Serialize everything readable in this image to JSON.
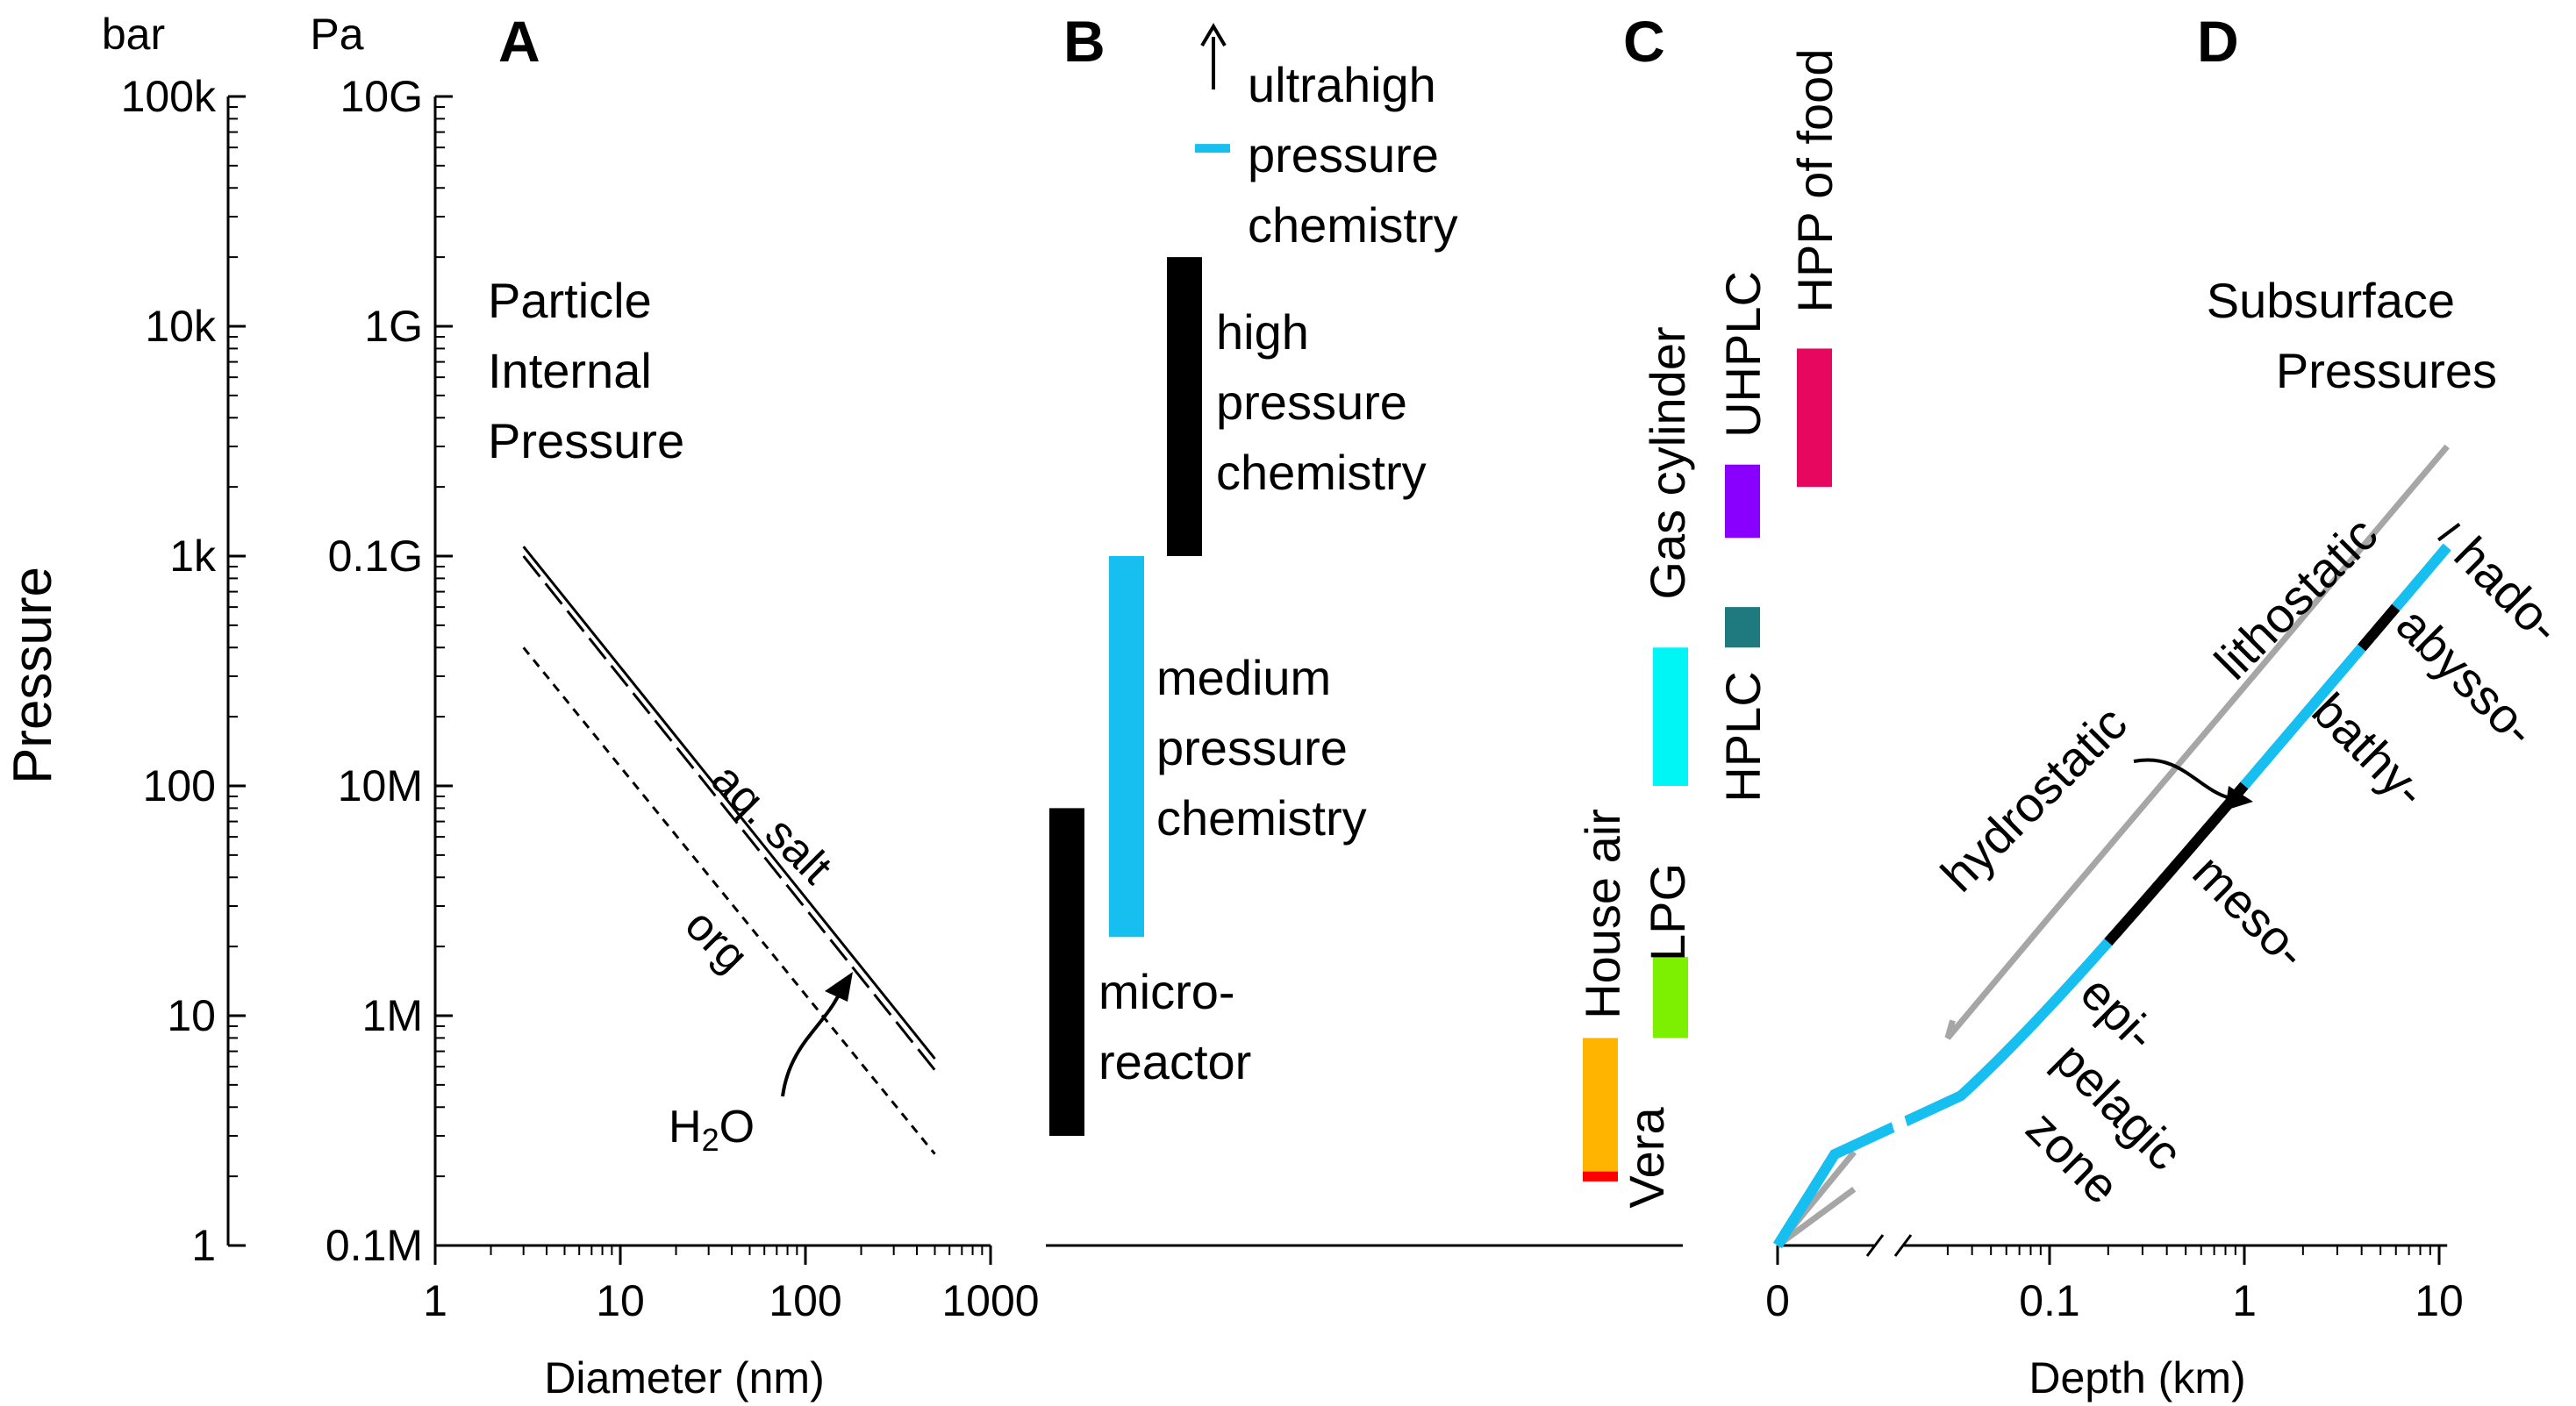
{
  "axis": {
    "ylabel": "Pressure",
    "bar_unit": "bar",
    "pa_unit": "Pa",
    "bar_ticks": [
      "100k",
      "10k",
      "1k",
      "100",
      "10",
      "1"
    ],
    "pa_ticks": [
      "10G",
      "1G",
      "0.1G",
      "10M",
      "1M",
      "0.1M"
    ]
  },
  "panels": {
    "A": {
      "letter": "A",
      "title_lines": [
        "Particle",
        "Internal",
        "Pressure"
      ]
    },
    "B": {
      "letter": "B"
    },
    "C": {
      "letter": "C"
    },
    "D": {
      "letter": "D",
      "title_lines": [
        "Subsurface",
        "Pressures"
      ]
    }
  },
  "colors": {
    "medium": "#16bff0",
    "hplc": "#1f7a80",
    "uhplc": "#8a00ff",
    "hpp": "#e8075e",
    "gas": "#00f5f5",
    "lpg": "#7cf000",
    "house": "#ffb400",
    "vera": "#ff0000",
    "grey": "#a6a6a6"
  },
  "chart_data": [
    {
      "panel": "A",
      "type": "line",
      "xlabel": "Diameter (nm)",
      "x_ticks": [
        "1",
        "10",
        "100",
        "1000"
      ],
      "xscale": "log",
      "yscale": "log",
      "xlim": [
        1,
        1000
      ],
      "ylim": [
        1,
        100000
      ],
      "yunit": "bar",
      "series": [
        {
          "name": "aq. salt",
          "style": "solid",
          "x": [
            3,
            500
          ],
          "y": [
            1100,
            6.5
          ]
        },
        {
          "name": "H2O",
          "style": "dashed",
          "x": [
            3,
            500
          ],
          "y": [
            1000,
            5.8
          ]
        },
        {
          "name": "org",
          "style": "dotted",
          "x": [
            3,
            500
          ],
          "y": [
            400,
            2.5
          ]
        }
      ],
      "labels": {
        "aq_salt": "aq. salt",
        "org": "org",
        "h2o_main": "H",
        "h2o_sub": "2",
        "h2o_tail": "O"
      }
    },
    {
      "panel": "B",
      "type": "bar",
      "yscale": "log",
      "yunit": "bar",
      "ranges": [
        {
          "name": "micro-reactor",
          "lines": [
            "micro-",
            "reactor"
          ],
          "low": 3,
          "high": 80,
          "color": "#000000"
        },
        {
          "name": "medium pressure chemistry",
          "lines": [
            "medium",
            "pressure",
            "chemistry"
          ],
          "low": 22,
          "high": 1000,
          "color": "#16bff0"
        },
        {
          "name": "high pressure chemistry",
          "lines": [
            "high",
            "pressure",
            "chemistry"
          ],
          "low": 1000,
          "high": 20000,
          "color": "#000000"
        },
        {
          "name": "ultrahigh pressure chemistry",
          "lines": [
            "ultrahigh",
            "pressure",
            "chemistry"
          ],
          "low": 60000,
          "high": 60000,
          "open_ended": true,
          "color": "#16bff0"
        }
      ]
    },
    {
      "panel": "C",
      "type": "bar",
      "yscale": "log",
      "yunit": "bar",
      "ranges": [
        {
          "name": "Vera",
          "low": 1.9,
          "high": 2.1,
          "color": "#ff0000"
        },
        {
          "name": "House air",
          "low": 2.1,
          "high": 8,
          "color": "#ffb400"
        },
        {
          "name": "LPG",
          "low": 8,
          "high": 18,
          "color": "#7cf000"
        },
        {
          "name": "Gas cylinder",
          "low": 100,
          "high": 400,
          "color": "#00f5f5"
        },
        {
          "name": "HPLC",
          "low": 400,
          "high": 600,
          "color": "#1f7a80"
        },
        {
          "name": "UHPLC",
          "low": 1200,
          "high": 2500,
          "color": "#8a00ff"
        },
        {
          "name": "HPP of food",
          "low": 2000,
          "high": 8000,
          "color": "#e8075e"
        }
      ]
    },
    {
      "panel": "D",
      "type": "line",
      "xlabel": "Depth (km)",
      "x_ticks": [
        "0",
        "0.1",
        "1",
        "10"
      ],
      "xscale": "log (broken axis after 0)",
      "yscale": "log",
      "yunit": "bar",
      "series": [
        {
          "name": "lithostatic",
          "x_km": [
            0,
            0.03,
            0.1,
            1,
            11
          ],
          "y": [
            1,
            8,
            27,
            270,
            3000
          ]
        },
        {
          "name": "hydrostatic",
          "x_km": [
            0,
            0.03,
            0.1,
            1,
            11
          ],
          "y": [
            1,
            3.5,
            11,
            101,
            1100
          ]
        }
      ],
      "zones": [
        {
          "name": "epipelagic zone",
          "lines": [
            "epi-",
            "pelagic",
            "zone"
          ],
          "from_km": 0,
          "to_km": 0.2,
          "color": "#16bff0"
        },
        {
          "name": "meso-",
          "from_km": 0.2,
          "to_km": 1,
          "color": "#000000"
        },
        {
          "name": "bathy-",
          "from_km": 1,
          "to_km": 4,
          "color": "#16bff0"
        },
        {
          "name": "abysso-",
          "from_km": 4,
          "to_km": 6,
          "color": "#000000"
        },
        {
          "name": "hado-",
          "from_km": 6,
          "to_km": 11,
          "color": "#16bff0"
        }
      ]
    }
  ]
}
